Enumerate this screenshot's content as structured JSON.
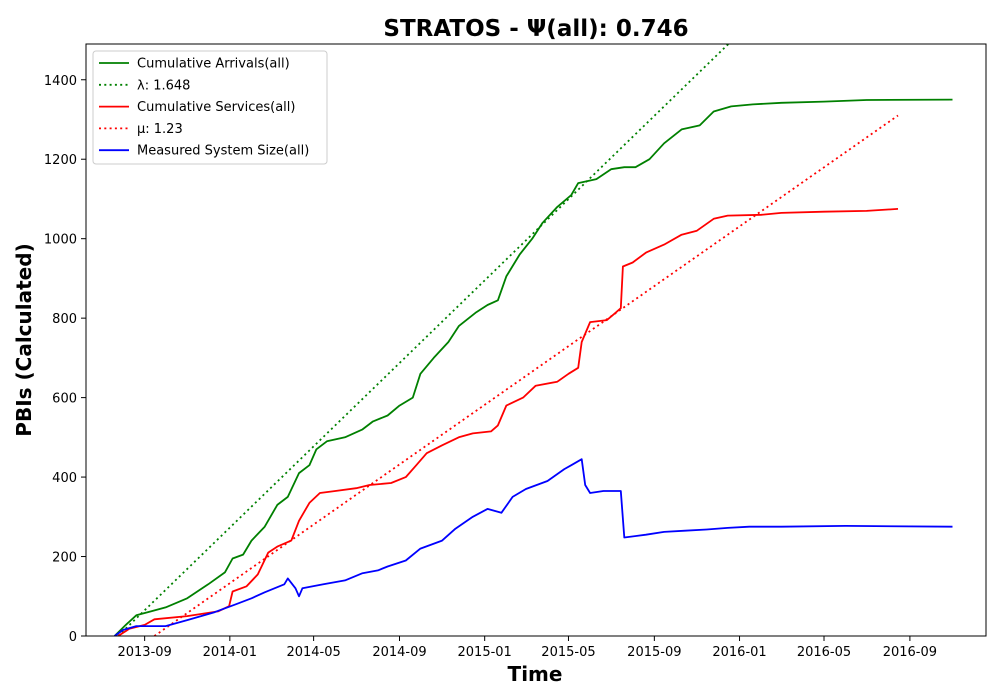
{
  "chart_data": {
    "type": "line",
    "title": "STRATOS -  Ψ(all): 0.746",
    "xlabel": "Time",
    "ylabel": "PBIs (Calculated)",
    "x_tick_labels": [
      "2013-09",
      "2014-01",
      "2014-05",
      "2014-09",
      "2015-01",
      "2015-05",
      "2015-09",
      "2016-01",
      "2016-05",
      "2016-09"
    ],
    "y_ticks": [
      0,
      200,
      400,
      600,
      800,
      1000,
      1200,
      1400
    ],
    "xlim": [
      "2013-06-09",
      "2016-12-19"
    ],
    "ylim": [
      0,
      1490
    ],
    "grid": false,
    "legend_position": "top-left",
    "series": [
      {
        "name": "Cumulative Arrivals(all)",
        "color": "#008000",
        "style": "solid",
        "points": [
          [
            "2013-07-20",
            0
          ],
          [
            "2013-08-05",
            28
          ],
          [
            "2013-08-20",
            52
          ],
          [
            "2013-09-10",
            62
          ],
          [
            "2013-10-01",
            72
          ],
          [
            "2013-11-01",
            95
          ],
          [
            "2013-12-01",
            130
          ],
          [
            "2013-12-25",
            160
          ],
          [
            "2014-01-05",
            195
          ],
          [
            "2014-01-20",
            205
          ],
          [
            "2014-02-01",
            240
          ],
          [
            "2014-02-20",
            275
          ],
          [
            "2014-03-10",
            330
          ],
          [
            "2014-03-25",
            350
          ],
          [
            "2014-04-10",
            410
          ],
          [
            "2014-04-25",
            430
          ],
          [
            "2014-05-05",
            470
          ],
          [
            "2014-05-20",
            490
          ],
          [
            "2014-06-15",
            500
          ],
          [
            "2014-07-10",
            520
          ],
          [
            "2014-07-25",
            540
          ],
          [
            "2014-08-15",
            555
          ],
          [
            "2014-09-01",
            580
          ],
          [
            "2014-09-20",
            600
          ],
          [
            "2014-10-01",
            660
          ],
          [
            "2014-10-20",
            700
          ],
          [
            "2014-11-10",
            740
          ],
          [
            "2014-11-25",
            780
          ],
          [
            "2014-12-20",
            815
          ],
          [
            "2015-01-05",
            833
          ],
          [
            "2015-01-20",
            845
          ],
          [
            "2015-02-01",
            905
          ],
          [
            "2015-02-20",
            960
          ],
          [
            "2015-03-10",
            1000
          ],
          [
            "2015-03-25",
            1040
          ],
          [
            "2015-04-15",
            1080
          ],
          [
            "2015-05-05",
            1110
          ],
          [
            "2015-05-15",
            1140
          ],
          [
            "2015-06-10",
            1150
          ],
          [
            "2015-07-01",
            1175
          ],
          [
            "2015-07-20",
            1180
          ],
          [
            "2015-08-05",
            1180
          ],
          [
            "2015-08-25",
            1200
          ],
          [
            "2015-09-15",
            1240
          ],
          [
            "2015-10-10",
            1275
          ],
          [
            "2015-11-05",
            1285
          ],
          [
            "2015-11-25",
            1320
          ],
          [
            "2015-12-20",
            1333
          ],
          [
            "2016-01-20",
            1338
          ],
          [
            "2016-03-01",
            1342
          ],
          [
            "2016-05-01",
            1345
          ],
          [
            "2016-07-01",
            1349
          ],
          [
            "2016-11-01",
            1350
          ]
        ]
      },
      {
        "name": "λ: 1.648",
        "color": "#008000",
        "style": "dotted",
        "points": [
          [
            "2013-07-25",
            0
          ],
          [
            "2015-12-16",
            1490
          ]
        ]
      },
      {
        "name": "Cumulative Services(all)",
        "color": "#ff0000",
        "style": "solid",
        "points": [
          [
            "2013-07-25",
            0
          ],
          [
            "2013-08-10",
            18
          ],
          [
            "2013-09-01",
            28
          ],
          [
            "2013-09-15",
            42
          ],
          [
            "2013-11-01",
            50
          ],
          [
            "2013-12-15",
            62
          ],
          [
            "2013-12-31",
            75
          ],
          [
            "2014-01-05",
            112
          ],
          [
            "2014-01-25",
            125
          ],
          [
            "2014-02-10",
            155
          ],
          [
            "2014-02-25",
            210
          ],
          [
            "2014-03-10",
            225
          ],
          [
            "2014-03-30",
            240
          ],
          [
            "2014-04-10",
            290
          ],
          [
            "2014-04-25",
            335
          ],
          [
            "2014-05-10",
            360
          ],
          [
            "2014-06-01",
            365
          ],
          [
            "2014-07-01",
            372
          ],
          [
            "2014-07-20",
            380
          ],
          [
            "2014-08-20",
            385
          ],
          [
            "2014-09-10",
            400
          ],
          [
            "2014-09-25",
            430
          ],
          [
            "2014-10-10",
            460
          ],
          [
            "2014-11-01",
            480
          ],
          [
            "2014-11-25",
            500
          ],
          [
            "2014-12-15",
            510
          ],
          [
            "2015-01-10",
            515
          ],
          [
            "2015-01-20",
            530
          ],
          [
            "2015-02-01",
            580
          ],
          [
            "2015-02-25",
            600
          ],
          [
            "2015-03-15",
            630
          ],
          [
            "2015-04-15",
            640
          ],
          [
            "2015-05-01",
            660
          ],
          [
            "2015-05-15",
            675
          ],
          [
            "2015-05-20",
            740
          ],
          [
            "2015-06-01",
            790
          ],
          [
            "2015-06-25",
            795
          ],
          [
            "2015-07-05",
            810
          ],
          [
            "2015-07-15",
            825
          ],
          [
            "2015-07-18",
            930
          ],
          [
            "2015-08-01",
            940
          ],
          [
            "2015-08-20",
            965
          ],
          [
            "2015-09-15",
            985
          ],
          [
            "2015-10-10",
            1010
          ],
          [
            "2015-11-01",
            1020
          ],
          [
            "2015-11-25",
            1050
          ],
          [
            "2015-12-15",
            1058
          ],
          [
            "2016-02-01",
            1060
          ],
          [
            "2016-03-01",
            1065
          ],
          [
            "2016-05-01",
            1068
          ],
          [
            "2016-07-01",
            1070
          ],
          [
            "2016-08-15",
            1075
          ]
        ]
      },
      {
        "name": "μ: 1.23",
        "color": "#ff0000",
        "style": "dotted",
        "points": [
          [
            "2013-09-15",
            0
          ],
          [
            "2016-08-15",
            1310
          ]
        ]
      },
      {
        "name": "Measured System Size(all)",
        "color": "#0000ff",
        "style": "solid",
        "points": [
          [
            "2013-07-20",
            0
          ],
          [
            "2013-08-01",
            15
          ],
          [
            "2013-08-20",
            25
          ],
          [
            "2013-10-01",
            25
          ],
          [
            "2013-11-01",
            40
          ],
          [
            "2013-12-10",
            60
          ],
          [
            "2014-01-10",
            80
          ],
          [
            "2014-02-01",
            95
          ],
          [
            "2014-02-20",
            110
          ],
          [
            "2014-03-20",
            130
          ],
          [
            "2014-03-25",
            145
          ],
          [
            "2014-04-05",
            120
          ],
          [
            "2014-04-10",
            100
          ],
          [
            "2014-04-15",
            120
          ],
          [
            "2014-05-15",
            130
          ],
          [
            "2014-06-15",
            140
          ],
          [
            "2014-07-10",
            158
          ],
          [
            "2014-08-01",
            165
          ],
          [
            "2014-08-15",
            175
          ],
          [
            "2014-09-10",
            190
          ],
          [
            "2014-10-01",
            220
          ],
          [
            "2014-11-01",
            240
          ],
          [
            "2014-11-20",
            270
          ],
          [
            "2014-12-15",
            300
          ],
          [
            "2015-01-05",
            320
          ],
          [
            "2015-01-25",
            310
          ],
          [
            "2015-02-10",
            350
          ],
          [
            "2015-03-01",
            370
          ],
          [
            "2015-04-01",
            390
          ],
          [
            "2015-04-25",
            420
          ],
          [
            "2015-05-05",
            430
          ],
          [
            "2015-05-20",
            445
          ],
          [
            "2015-05-25",
            380
          ],
          [
            "2015-06-01",
            360
          ],
          [
            "2015-06-20",
            365
          ],
          [
            "2015-07-15",
            365
          ],
          [
            "2015-07-20",
            248
          ],
          [
            "2015-08-20",
            255
          ],
          [
            "2015-09-15",
            262
          ],
          [
            "2015-10-15",
            265
          ],
          [
            "2015-11-15",
            268
          ],
          [
            "2015-12-15",
            272
          ],
          [
            "2016-01-15",
            275
          ],
          [
            "2016-03-01",
            275
          ],
          [
            "2016-06-01",
            277
          ],
          [
            "2016-11-01",
            275
          ]
        ]
      }
    ]
  }
}
